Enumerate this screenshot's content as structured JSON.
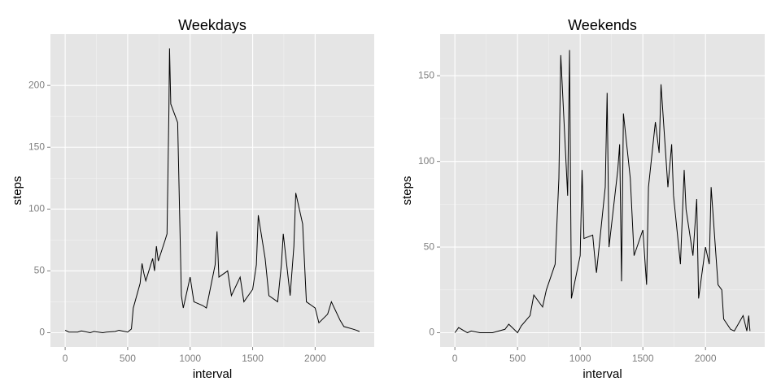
{
  "chart_data": [
    {
      "type": "line",
      "title": "Weekdays",
      "x_label": "interval",
      "y_label": "steps",
      "color": "#000000",
      "grid": true,
      "x": [
        0,
        30,
        100,
        130,
        200,
        230,
        300,
        330,
        400,
        430,
        500,
        530,
        545,
        600,
        615,
        630,
        645,
        700,
        715,
        730,
        745,
        800,
        815,
        830,
        835,
        845,
        900,
        915,
        930,
        945,
        1000,
        1030,
        1100,
        1130,
        1200,
        1215,
        1230,
        1300,
        1330,
        1400,
        1430,
        1500,
        1530,
        1545,
        1600,
        1630,
        1700,
        1730,
        1745,
        1800,
        1830,
        1845,
        1900,
        1930,
        2000,
        2030,
        2100,
        2130,
        2200,
        2230,
        2300,
        2330,
        2355
      ],
      "values": [
        2,
        0.5,
        0.5,
        1.5,
        0,
        1,
        0,
        0.5,
        1,
        2,
        0.5,
        3,
        20,
        40,
        56,
        48,
        42,
        60,
        50,
        70,
        58,
        75,
        80,
        180,
        230,
        185,
        170,
        100,
        30,
        20,
        45,
        25,
        22,
        20,
        55,
        82,
        45,
        50,
        30,
        45,
        25,
        35,
        55,
        95,
        60,
        30,
        25,
        55,
        80,
        30,
        70,
        113,
        88,
        25,
        20,
        8,
        15,
        25,
        10,
        5,
        3,
        2,
        1
      ],
      "xlim": [
        -117.75,
        2472.75
      ],
      "xticks": [
        0,
        500,
        1000,
        1500,
        2000
      ],
      "ylim": [
        -11.5,
        241.5
      ],
      "yticks": [
        0,
        50,
        100,
        150,
        200
      ]
    },
    {
      "type": "line",
      "title": "Weekends",
      "x_label": "interval",
      "y_label": "steps",
      "color": "#000000",
      "grid": true,
      "x": [
        0,
        30,
        100,
        130,
        200,
        300,
        400,
        430,
        500,
        530,
        600,
        630,
        700,
        730,
        800,
        830,
        845,
        900,
        915,
        930,
        1000,
        1015,
        1030,
        1100,
        1115,
        1130,
        1200,
        1215,
        1230,
        1300,
        1315,
        1330,
        1345,
        1400,
        1430,
        1500,
        1530,
        1545,
        1600,
        1630,
        1645,
        1700,
        1730,
        1745,
        1800,
        1830,
        1845,
        1900,
        1930,
        1945,
        2000,
        2030,
        2045,
        2100,
        2130,
        2145,
        2200,
        2230,
        2300,
        2330,
        2345,
        2355
      ],
      "values": [
        0,
        3,
        0,
        1,
        0,
        0,
        2,
        5,
        0,
        4,
        10,
        22,
        15,
        25,
        40,
        90,
        162,
        80,
        165,
        20,
        45,
        95,
        55,
        57,
        45,
        35,
        85,
        140,
        50,
        95,
        110,
        30,
        128,
        90,
        45,
        60,
        28,
        85,
        123,
        105,
        145,
        85,
        110,
        80,
        40,
        95,
        72,
        45,
        78,
        20,
        50,
        40,
        85,
        28,
        25,
        8,
        2,
        1,
        10,
        1,
        10,
        1
      ],
      "xlim": [
        -117.75,
        2472.75
      ],
      "xticks": [
        0,
        500,
        1000,
        1500,
        2000
      ],
      "ylim": [
        -8.3,
        174.3
      ],
      "yticks": [
        0,
        50,
        100,
        150
      ]
    }
  ]
}
